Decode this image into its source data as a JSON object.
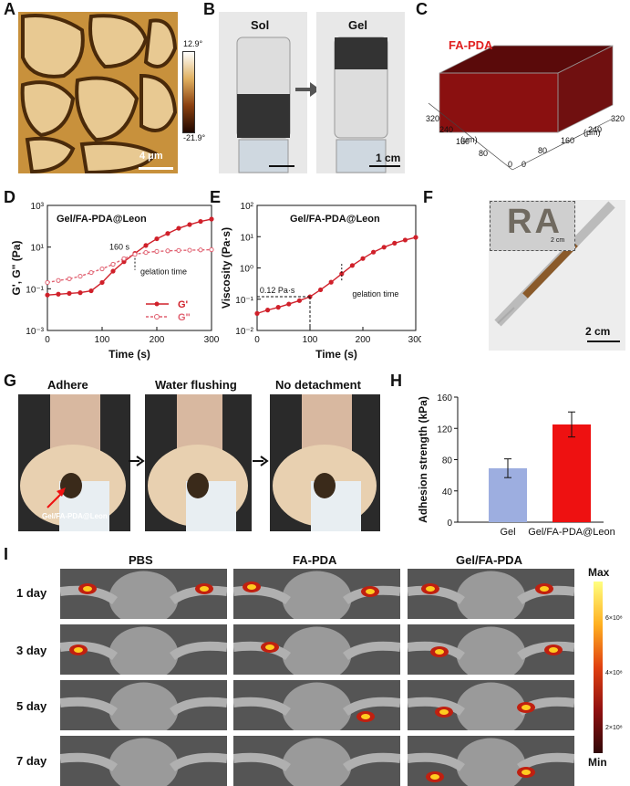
{
  "panels": {
    "A": {
      "letter": "A",
      "scale_max": "12.9°",
      "scale_min": "-21.9°",
      "scalebar": "4 μm"
    },
    "B": {
      "letter": "B",
      "sol": "Sol",
      "gel": "Gel",
      "scalebar": "1 cm"
    },
    "C": {
      "letter": "C",
      "label": "FA-PDA",
      "unit": "(μm)",
      "ticks_left": [
        "320",
        "240",
        "160",
        "80",
        "0"
      ],
      "ticks_right": [
        "0",
        "80",
        "160",
        "240",
        "320"
      ]
    },
    "D": {
      "letter": "D",
      "inset_title": "Gel/FA-PDA@Leon",
      "annotation": "160 s",
      "gel_note": "gelation time",
      "legend": [
        "G'",
        "G\""
      ]
    },
    "E": {
      "letter": "E",
      "inset_title": "Gel/FA-PDA@Leon",
      "annotation": "0.12 Pa·s",
      "gel_note": "gelation time"
    },
    "F": {
      "letter": "F",
      "inset_text": "RA",
      "inset_scale": "2 cm",
      "scalebar": "2 cm"
    },
    "G": {
      "letter": "G",
      "captions": [
        "Adhere",
        "Water flushing",
        "No detachment"
      ],
      "arrow_label": "Gel/FA-PDA@Leon"
    },
    "H": {
      "letter": "H"
    },
    "I": {
      "letter": "I",
      "columns": [
        "PBS",
        "FA-PDA",
        "Gel/FA-PDA"
      ],
      "rows": [
        "1 day",
        "3 day",
        "5 day",
        "7 day"
      ],
      "colorbar": {
        "max": "Max",
        "min": "Min",
        "ticks": [
          "6×10⁸",
          "4×10⁸",
          "2×10⁸"
        ]
      }
    }
  },
  "chart_data": [
    {
      "type": "line",
      "title": "",
      "xlabel": "Time (s)",
      "ylabel": "G', G\" (Pa)",
      "xlim": [
        0,
        300
      ],
      "ylim": [
        0.001,
        1000
      ],
      "yscale": "log",
      "xticks": [
        "0",
        "100",
        "200",
        "300"
      ],
      "yticks": [
        "10⁻³",
        "10⁻¹",
        "10¹",
        "10³"
      ],
      "series": [
        {
          "name": "G'",
          "color": "#d0202a",
          "x": [
            0,
            20,
            40,
            60,
            80,
            100,
            120,
            140,
            160,
            180,
            200,
            220,
            240,
            260,
            280,
            300
          ],
          "y": [
            0.05,
            0.055,
            0.06,
            0.065,
            0.08,
            0.2,
            0.7,
            2.0,
            5,
            12,
            25,
            45,
            80,
            120,
            170,
            220
          ]
        },
        {
          "name": "G\"",
          "color": "#e06070",
          "x": [
            0,
            20,
            40,
            60,
            80,
            100,
            120,
            140,
            160,
            180,
            200,
            220,
            240,
            260,
            280,
            300
          ],
          "y": [
            0.2,
            0.25,
            0.3,
            0.4,
            0.6,
            0.9,
            1.5,
            2.8,
            4.5,
            5.5,
            6.2,
            6.6,
            6.9,
            7.1,
            7.3,
            7.5
          ]
        }
      ]
    },
    {
      "type": "line",
      "title": "",
      "xlabel": "Time (s)",
      "ylabel": "Viscosity (Pa·s)",
      "xlim": [
        0,
        300
      ],
      "ylim": [
        0.01,
        100
      ],
      "yscale": "log",
      "xticks": [
        "0",
        "100",
        "200",
        "300"
      ],
      "yticks": [
        "10⁻²",
        "10⁻¹",
        "10⁰",
        "10¹",
        "10²"
      ],
      "series": [
        {
          "name": "",
          "color": "#d0202a",
          "x": [
            0,
            20,
            40,
            60,
            80,
            100,
            120,
            140,
            160,
            180,
            200,
            220,
            240,
            260,
            280,
            300
          ],
          "y": [
            0.035,
            0.045,
            0.055,
            0.07,
            0.09,
            0.12,
            0.2,
            0.35,
            0.65,
            1.2,
            2.0,
            3.2,
            4.6,
            6.2,
            7.8,
            9.5
          ]
        }
      ]
    },
    {
      "type": "bar",
      "title": "",
      "xlabel": "",
      "ylabel": "Adhesion strength (kPa)",
      "ylim": [
        0,
        160
      ],
      "yticks": [
        "0",
        "40",
        "80",
        "120",
        "160"
      ],
      "categories": [
        "Gel",
        "Gel/FA-PDA@Leon"
      ],
      "values": [
        69,
        125
      ],
      "errors": [
        12,
        16
      ],
      "colors": [
        "#9daee0",
        "#ee1111"
      ]
    }
  ]
}
